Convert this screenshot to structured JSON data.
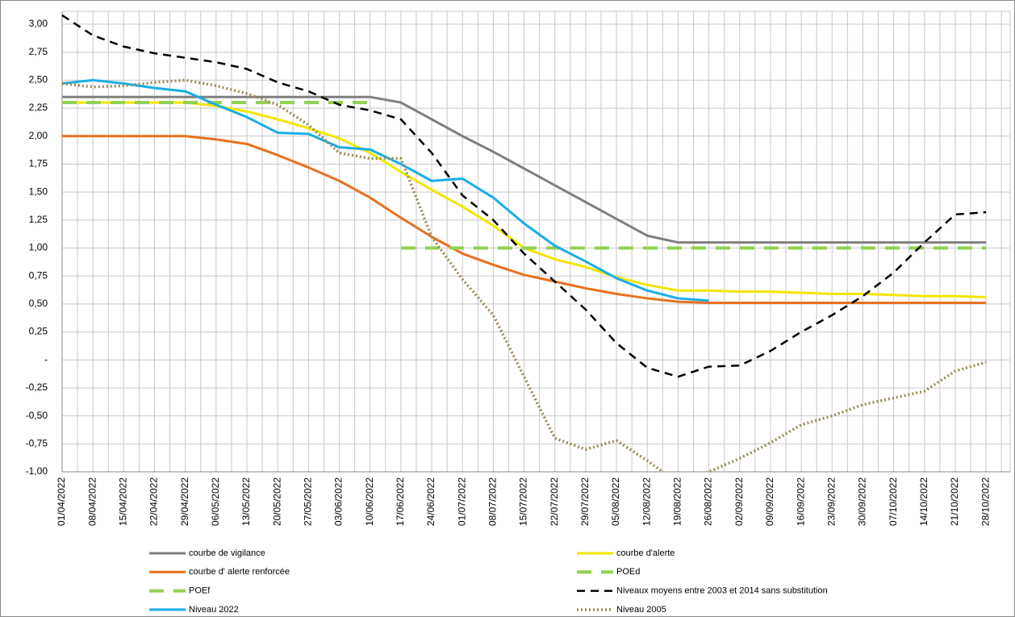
{
  "chart_data": {
    "type": "line",
    "categories": [
      "01/04/2022",
      "08/04/2022",
      "15/04/2022",
      "22/04/2022",
      "29/04/2022",
      "06/05/2022",
      "13/05/2022",
      "20/05/2022",
      "27/05/2022",
      "03/06/2022",
      "10/06/2022",
      "17/06/2022",
      "24/06/2022",
      "01/07/2022",
      "08/07/2022",
      "15/07/2022",
      "22/07/2022",
      "29/07/2022",
      "05/08/2022",
      "12/08/2022",
      "19/08/2022",
      "26/08/2022",
      "02/09/2022",
      "09/09/2022",
      "16/09/2022",
      "23/09/2022",
      "30/09/2022",
      "07/10/2022",
      "14/10/2022",
      "21/10/2022",
      "28/10/2022"
    ],
    "ylim": [
      -1,
      3
    ],
    "yticks": [
      {
        "value": 3,
        "label": "3,00"
      },
      {
        "value": 2.75,
        "label": "2,75"
      },
      {
        "value": 2.5,
        "label": "2,50"
      },
      {
        "value": 2.25,
        "label": "2,25"
      },
      {
        "value": 2,
        "label": "2,00"
      },
      {
        "value": 1.75,
        "label": "1,75"
      },
      {
        "value": 1.5,
        "label": "1,50"
      },
      {
        "value": 1.25,
        "label": "1,25"
      },
      {
        "value": 1,
        "label": "1,00"
      },
      {
        "value": 0.75,
        "label": "0,75"
      },
      {
        "value": 0.5,
        "label": "0,50"
      },
      {
        "value": 0.25,
        "label": "0,25"
      },
      {
        "value": 0,
        "label": "-"
      },
      {
        "value": -0.25,
        "label": "-0,25"
      },
      {
        "value": -0.5,
        "label": "-0,50"
      },
      {
        "value": -0.75,
        "label": "-0,75"
      },
      {
        "value": -1,
        "label": "-1,00"
      }
    ],
    "grid": true,
    "series": [
      {
        "name": "courbe de vigilance",
        "color": "#808080",
        "values": [
          2.35,
          2.35,
          2.35,
          2.35,
          2.35,
          2.35,
          2.35,
          2.35,
          2.35,
          2.35,
          2.35,
          2.3,
          2.15,
          2.0,
          1.86,
          1.71,
          1.56,
          1.41,
          1.26,
          1.11,
          1.05,
          1.05,
          1.05,
          1.05,
          1.05,
          1.05,
          1.05,
          1.05,
          1.05,
          1.05,
          1.05
        ]
      },
      {
        "name": "courbe d'alerte",
        "color": "#f2e600",
        "values": [
          2.3,
          2.3,
          2.3,
          2.3,
          2.3,
          2.27,
          2.22,
          2.15,
          2.07,
          1.98,
          1.85,
          1.68,
          1.52,
          1.37,
          1.2,
          1.0,
          0.9,
          0.83,
          0.74,
          0.67,
          0.62,
          0.62,
          0.61,
          0.61,
          0.6,
          0.59,
          0.59,
          0.58,
          0.57,
          0.57,
          0.56
        ]
      },
      {
        "name": "courbe d' alerte renforcée",
        "color": "#e8711f",
        "values": [
          2.0,
          2.0,
          2.0,
          2.0,
          2.0,
          1.97,
          1.93,
          1.83,
          1.72,
          1.6,
          1.45,
          1.27,
          1.1,
          0.95,
          0.85,
          0.76,
          0.7,
          0.64,
          0.59,
          0.55,
          0.52,
          0.51,
          0.51,
          0.51,
          0.51,
          0.51,
          0.51,
          0.51,
          0.51,
          0.51,
          0.51
        ]
      },
      {
        "name": "POEd",
        "color": "#92d050",
        "dash": "dashed",
        "values": [
          2.3,
          2.3,
          2.3,
          2.3,
          2.3,
          2.3,
          2.3,
          2.3,
          2.3,
          2.3,
          2.3,
          null,
          null,
          null,
          null,
          null,
          null,
          null,
          null,
          null,
          null,
          null,
          null,
          null,
          null,
          null,
          null,
          null,
          null,
          null,
          null
        ]
      },
      {
        "name": "POEf",
        "color": "#92d050",
        "dash": "dashed",
        "values": [
          null,
          null,
          null,
          null,
          null,
          null,
          null,
          null,
          null,
          null,
          null,
          1.0,
          1.0,
          1.0,
          1.0,
          1.0,
          1.0,
          1.0,
          1.0,
          1.0,
          1.0,
          1.0,
          1.0,
          1.0,
          1.0,
          1.0,
          1.0,
          1.0,
          1.0,
          1.0,
          1.0
        ]
      },
      {
        "name": "Niveaux moyens entre 2003 et 2014 sans substitution",
        "color": "#000000",
        "dash": "dashed",
        "values": [
          3.08,
          2.9,
          2.8,
          2.74,
          2.7,
          2.66,
          2.6,
          2.48,
          2.4,
          2.28,
          2.23,
          2.15,
          1.85,
          1.47,
          1.25,
          0.95,
          0.7,
          0.45,
          0.15,
          -0.07,
          -0.15,
          -0.06,
          -0.05,
          0.08,
          0.25,
          0.4,
          0.57,
          0.78,
          1.05,
          1.3,
          1.32
        ]
      },
      {
        "name": "Niveau 2022",
        "color": "#19aee8",
        "values": [
          2.47,
          2.5,
          2.47,
          2.43,
          2.4,
          2.28,
          2.17,
          2.03,
          2.02,
          1.9,
          1.88,
          1.75,
          1.6,
          1.62,
          1.45,
          1.22,
          1.02,
          0.88,
          0.73,
          0.62,
          0.55,
          0.53,
          null,
          null,
          null,
          null,
          null,
          null,
          null,
          null,
          null
        ]
      },
      {
        "name": "Niveau 2005",
        "color": "#9c8b55",
        "dash": "dotted",
        "values": [
          2.47,
          2.44,
          2.45,
          2.48,
          2.5,
          2.45,
          2.38,
          2.28,
          2.1,
          1.85,
          1.8,
          1.8,
          1.1,
          0.72,
          0.4,
          -0.15,
          -0.7,
          -0.8,
          -0.72,
          -0.9,
          -1.1,
          -1.0,
          -0.88,
          -0.74,
          -0.58,
          -0.5,
          -0.4,
          -0.34,
          -0.28,
          -0.1,
          -0.02
        ]
      }
    ]
  }
}
